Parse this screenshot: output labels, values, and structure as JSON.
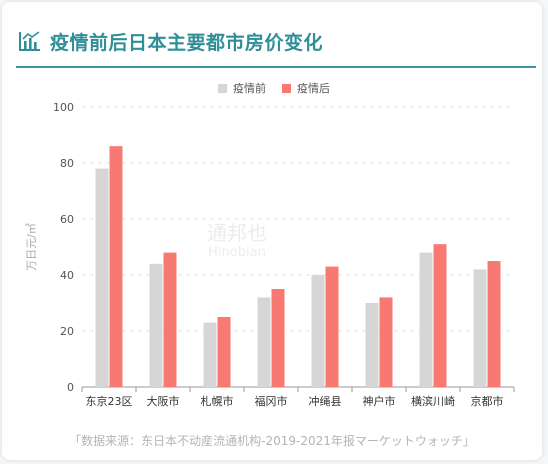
{
  "header": {
    "title": "疫情前后日本主要都市房价变化",
    "icon": "bar-chart-icon",
    "accent_color": "#2f8f98"
  },
  "source": "「数据来源：东日本不动産流通机构-2019-2021年报マーケットウォッチ」",
  "watermark": {
    "cn": "通邦也",
    "en": "Hinobian"
  },
  "chart_data": {
    "type": "bar",
    "title": "",
    "xlabel": "",
    "ylabel": "万日元/㎡",
    "ylim": [
      0,
      100
    ],
    "yticks": [
      0,
      20,
      40,
      60,
      80,
      100
    ],
    "grid": true,
    "legend_position": "top-center",
    "categories": [
      "东京23区",
      "大阪市",
      "札幌市",
      "福冈市",
      "冲绳县",
      "神户市",
      "横滨川崎",
      "京都市"
    ],
    "series": [
      {
        "name": "疫情前",
        "color": "#d6d6d6",
        "values": [
          78,
          44,
          23,
          32,
          40,
          30,
          48,
          42
        ]
      },
      {
        "name": "疫情后",
        "color": "#f87872",
        "values": [
          86,
          48,
          25,
          35,
          43,
          32,
          51,
          45
        ]
      }
    ]
  }
}
